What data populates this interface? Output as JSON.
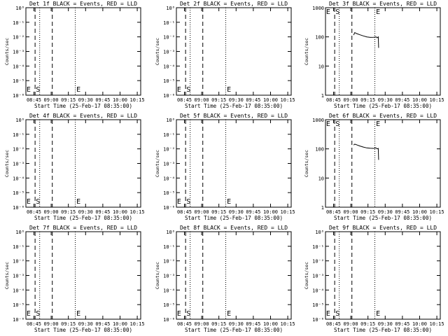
{
  "chart_data": [
    {
      "type": "line",
      "title": "Det 1f BLACK = Events, RED = LLD",
      "xlabel": "Start Time (25-Feb-17 08:35:00)",
      "ylabel": "Counts/sec",
      "yscale": "log",
      "y_ticks": [
        "10⁰",
        "10⁻¹",
        "10⁻²",
        "10⁻³",
        "10⁻⁴",
        "10⁻⁵",
        "10⁻⁶"
      ],
      "x_ticks": [
        "08:45",
        "09:00",
        "09:15",
        "09:30",
        "09:45",
        "10:00",
        "10:15"
      ],
      "xlim_minutes": [
        0,
        100
      ],
      "dashed_lines": [
        8,
        23
      ],
      "dotted_lines": [
        12,
        43
      ],
      "markers": [
        {
          "label": "E",
          "x": 0.5
        },
        {
          "label": "S",
          "x": 8.7
        },
        {
          "label": "E",
          "x": 44
        }
      ],
      "series": []
    },
    {
      "type": "line",
      "title": "Det 2f BLACK = Events, RED = LLD",
      "xlabel": "Start Time (25-Feb-17 08:35:00)",
      "ylabel": "Counts/sec",
      "yscale": "log",
      "y_ticks": [
        "10⁰",
        "10⁻¹",
        "10⁻²",
        "10⁻³",
        "10⁻⁴",
        "10⁻⁵",
        "10⁻⁶"
      ],
      "x_ticks": [
        "08:45",
        "09:00",
        "09:15",
        "09:30",
        "09:45",
        "10:00",
        "10:15"
      ],
      "xlim_minutes": [
        0,
        100
      ],
      "dashed_lines": [
        8,
        23
      ],
      "dotted_lines": [
        12,
        43
      ],
      "markers": [
        {
          "label": "E",
          "x": 0.5
        },
        {
          "label": "S",
          "x": 8.7
        },
        {
          "label": "E",
          "x": 44
        }
      ],
      "series": []
    },
    {
      "type": "line",
      "title": "Det 3f BLACK = Events, RED = LLD",
      "xlabel": "Start Time (25-Feb-17 08:35:00)",
      "ylabel": "Counts/sec",
      "yscale": "log",
      "y_ticks": [
        "1000",
        "100",
        "10",
        "1"
      ],
      "x_ticks": [
        "08:45",
        "09:00",
        "09:15",
        "09:30",
        "09:45",
        "10:00",
        "10:15"
      ],
      "xlim_minutes": [
        0,
        100
      ],
      "dashed_lines": [
        8,
        23
      ],
      "dotted_lines": [
        12,
        43
      ],
      "markers": [
        {
          "label": "E",
          "x": 0.5
        },
        {
          "label": "S",
          "x": 8.7
        },
        {
          "label": "E",
          "x": 44
        }
      ],
      "series": [
        {
          "points": [
            [
              24.5,
              115
            ],
            [
              25.5,
              140
            ],
            [
              27,
              130
            ],
            [
              30,
              118
            ],
            [
              33,
              108
            ],
            [
              36,
              100
            ],
            [
              39,
              96
            ],
            [
              42,
              97
            ],
            [
              44,
              100
            ],
            [
              45,
              93
            ],
            [
              46,
              100
            ],
            [
              46.3,
              42
            ]
          ]
        }
      ]
    },
    {
      "type": "line",
      "title": "Det 4f BLACK = Events, RED = LLD",
      "xlabel": "Start Time (25-Feb-17 08:35:00)",
      "ylabel": "Counts/sec",
      "yscale": "log",
      "y_ticks": [
        "10⁰",
        "10⁻¹",
        "10⁻²",
        "10⁻³",
        "10⁻⁴",
        "10⁻⁵",
        "10⁻⁶"
      ],
      "x_ticks": [
        "08:45",
        "09:00",
        "09:15",
        "09:30",
        "09:45",
        "10:00",
        "10:15"
      ],
      "xlim_minutes": [
        0,
        100
      ],
      "dashed_lines": [
        8,
        23
      ],
      "dotted_lines": [
        12,
        43
      ],
      "markers": [
        {
          "label": "E",
          "x": 0.5
        },
        {
          "label": "S",
          "x": 8.7
        },
        {
          "label": "E",
          "x": 44
        }
      ],
      "series": []
    },
    {
      "type": "line",
      "title": "Det 5f BLACK = Events, RED = LLD",
      "xlabel": "Start Time (25-Feb-17 08:35:00)",
      "ylabel": "Counts/sec",
      "yscale": "log",
      "y_ticks": [
        "10⁰",
        "10⁻¹",
        "10⁻²",
        "10⁻³",
        "10⁻⁴",
        "10⁻⁵",
        "10⁻⁶"
      ],
      "x_ticks": [
        "08:45",
        "09:00",
        "09:15",
        "09:30",
        "09:45",
        "10:00",
        "10:15"
      ],
      "xlim_minutes": [
        0,
        100
      ],
      "dashed_lines": [
        8,
        23
      ],
      "dotted_lines": [
        12,
        43
      ],
      "markers": [
        {
          "label": "E",
          "x": 0.5
        },
        {
          "label": "S",
          "x": 8.7
        },
        {
          "label": "E",
          "x": 44
        }
      ],
      "series": []
    },
    {
      "type": "line",
      "title": "Det 6f BLACK = Events, RED = LLD",
      "xlabel": "Start Time (25-Feb-17 08:35:00)",
      "ylabel": "Counts/sec",
      "yscale": "log",
      "y_ticks": [
        "1000",
        "100",
        "10",
        "1"
      ],
      "x_ticks": [
        "08:45",
        "09:00",
        "09:15",
        "09:30",
        "09:45",
        "10:00",
        "10:15"
      ],
      "xlim_minutes": [
        0,
        100
      ],
      "dashed_lines": [
        8,
        23
      ],
      "dotted_lines": [
        12,
        43
      ],
      "markers": [
        {
          "label": "E",
          "x": 0.5
        },
        {
          "label": "S",
          "x": 8.7
        },
        {
          "label": "E",
          "x": 44
        }
      ],
      "series": [
        {
          "points": [
            [
              24.5,
              135
            ],
            [
              25.5,
              145
            ],
            [
              27,
              138
            ],
            [
              30,
              125
            ],
            [
              33,
              115
            ],
            [
              36,
              108
            ],
            [
              39,
              105
            ],
            [
              42,
              104
            ],
            [
              44,
              108
            ],
            [
              45,
              100
            ],
            [
              46,
              104
            ],
            [
              46.3,
              42
            ]
          ]
        }
      ]
    },
    {
      "type": "line",
      "title": "Det 7f BLACK = Events, RED = LLD",
      "xlabel": "Start Time (25-Feb-17 08:35:00)",
      "ylabel": "Counts/sec",
      "yscale": "log",
      "y_ticks": [
        "10⁰",
        "10⁻¹",
        "10⁻²",
        "10⁻³",
        "10⁻⁴",
        "10⁻⁵",
        "10⁻⁶"
      ],
      "x_ticks": [
        "08:45",
        "09:00",
        "09:15",
        "09:30",
        "09:45",
        "10:00",
        "10:15"
      ],
      "xlim_minutes": [
        0,
        100
      ],
      "dashed_lines": [
        8,
        23
      ],
      "dotted_lines": [
        12,
        43
      ],
      "markers": [
        {
          "label": "E",
          "x": 0.5
        },
        {
          "label": "S",
          "x": 8.7
        },
        {
          "label": "E",
          "x": 44
        }
      ],
      "series": []
    },
    {
      "type": "line",
      "title": "Det 8f BLACK = Events, RED = LLD",
      "xlabel": "Start Time (25-Feb-17 08:35:00)",
      "ylabel": "Counts/sec",
      "yscale": "log",
      "y_ticks": [
        "10⁰",
        "10⁻¹",
        "10⁻²",
        "10⁻³",
        "10⁻⁴",
        "10⁻⁵",
        "10⁻⁶"
      ],
      "x_ticks": [
        "08:45",
        "09:00",
        "09:15",
        "09:30",
        "09:45",
        "10:00",
        "10:15"
      ],
      "xlim_minutes": [
        0,
        100
      ],
      "dashed_lines": [
        8,
        23
      ],
      "dotted_lines": [
        12,
        43
      ],
      "markers": [
        {
          "label": "E",
          "x": 0.5
        },
        {
          "label": "S",
          "x": 8.7
        },
        {
          "label": "E",
          "x": 44
        }
      ],
      "series": []
    },
    {
      "type": "line",
      "title": "Det 9f BLACK = Events, RED = LLD",
      "xlabel": "Start Time (25-Feb-17 08:35:00)",
      "ylabel": "Counts/sec",
      "yscale": "log",
      "y_ticks": [
        "10⁰",
        "10⁻¹",
        "10⁻²",
        "10⁻³",
        "10⁻⁴",
        "10⁻⁵",
        "10⁻⁶"
      ],
      "x_ticks": [
        "08:45",
        "09:00",
        "09:15",
        "09:30",
        "09:45",
        "10:00",
        "10:15"
      ],
      "xlim_minutes": [
        0,
        100
      ],
      "dashed_lines": [
        8,
        23
      ],
      "dotted_lines": [
        12,
        43
      ],
      "markers": [
        {
          "label": "E",
          "x": 0.5
        },
        {
          "label": "S",
          "x": 8.7
        },
        {
          "label": "E",
          "x": 44
        }
      ],
      "series": []
    }
  ]
}
